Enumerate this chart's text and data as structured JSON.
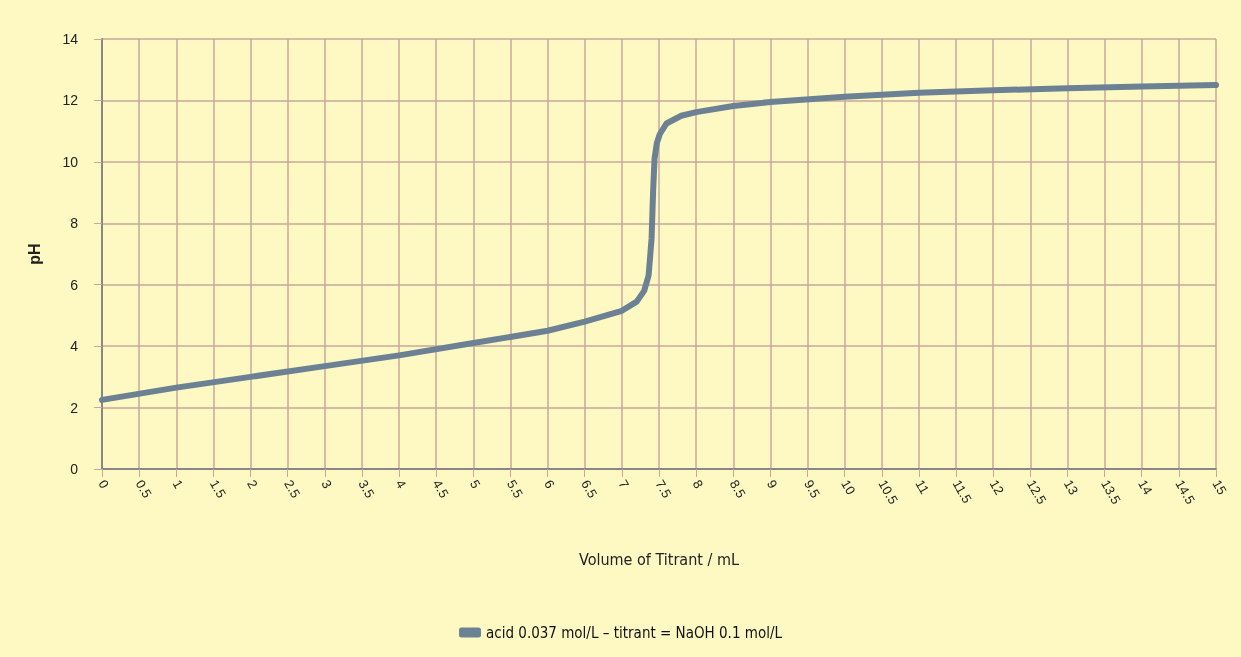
{
  "chart_data": {
    "type": "line",
    "xlabel": "Volume of Titrant / mL",
    "ylabel": "pH",
    "xlim": [
      0,
      15
    ],
    "xticks": [
      0,
      0.5,
      1,
      1.5,
      2,
      2.5,
      3,
      3.5,
      4,
      4.5,
      5,
      5.5,
      6,
      6.5,
      7,
      7.5,
      8,
      8.5,
      9,
      9.5,
      10,
      10.5,
      11,
      11.5,
      12,
      12.5,
      13,
      13.5,
      14,
      14.5,
      15
    ],
    "ylim": [
      0,
      14
    ],
    "yticks": [
      0,
      2,
      4,
      6,
      8,
      10,
      12,
      14
    ],
    "grid": true,
    "legend": "bottom",
    "marker": "none",
    "line_style": "solid",
    "series": [
      {
        "name": "acid 0.037 mol/L – titrant = NaOH 0.1 mol/L",
        "color": "#6c8294",
        "x": [
          0,
          1,
          2,
          3,
          4,
          5,
          6,
          6.5,
          7,
          7.2,
          7.3,
          7.36,
          7.4,
          7.42,
          7.44,
          7.47,
          7.51,
          7.6,
          7.8,
          8,
          8.5,
          9,
          10,
          11,
          12,
          13,
          14,
          15
        ],
        "values": [
          2.25,
          2.65,
          3.0,
          3.35,
          3.7,
          4.1,
          4.5,
          4.8,
          5.15,
          5.45,
          5.8,
          6.3,
          7.5,
          9,
          10.1,
          10.6,
          10.9,
          11.25,
          11.5,
          11.62,
          11.82,
          11.95,
          12.12,
          12.25,
          12.33,
          12.4,
          12.45,
          12.5
        ]
      }
    ]
  }
}
